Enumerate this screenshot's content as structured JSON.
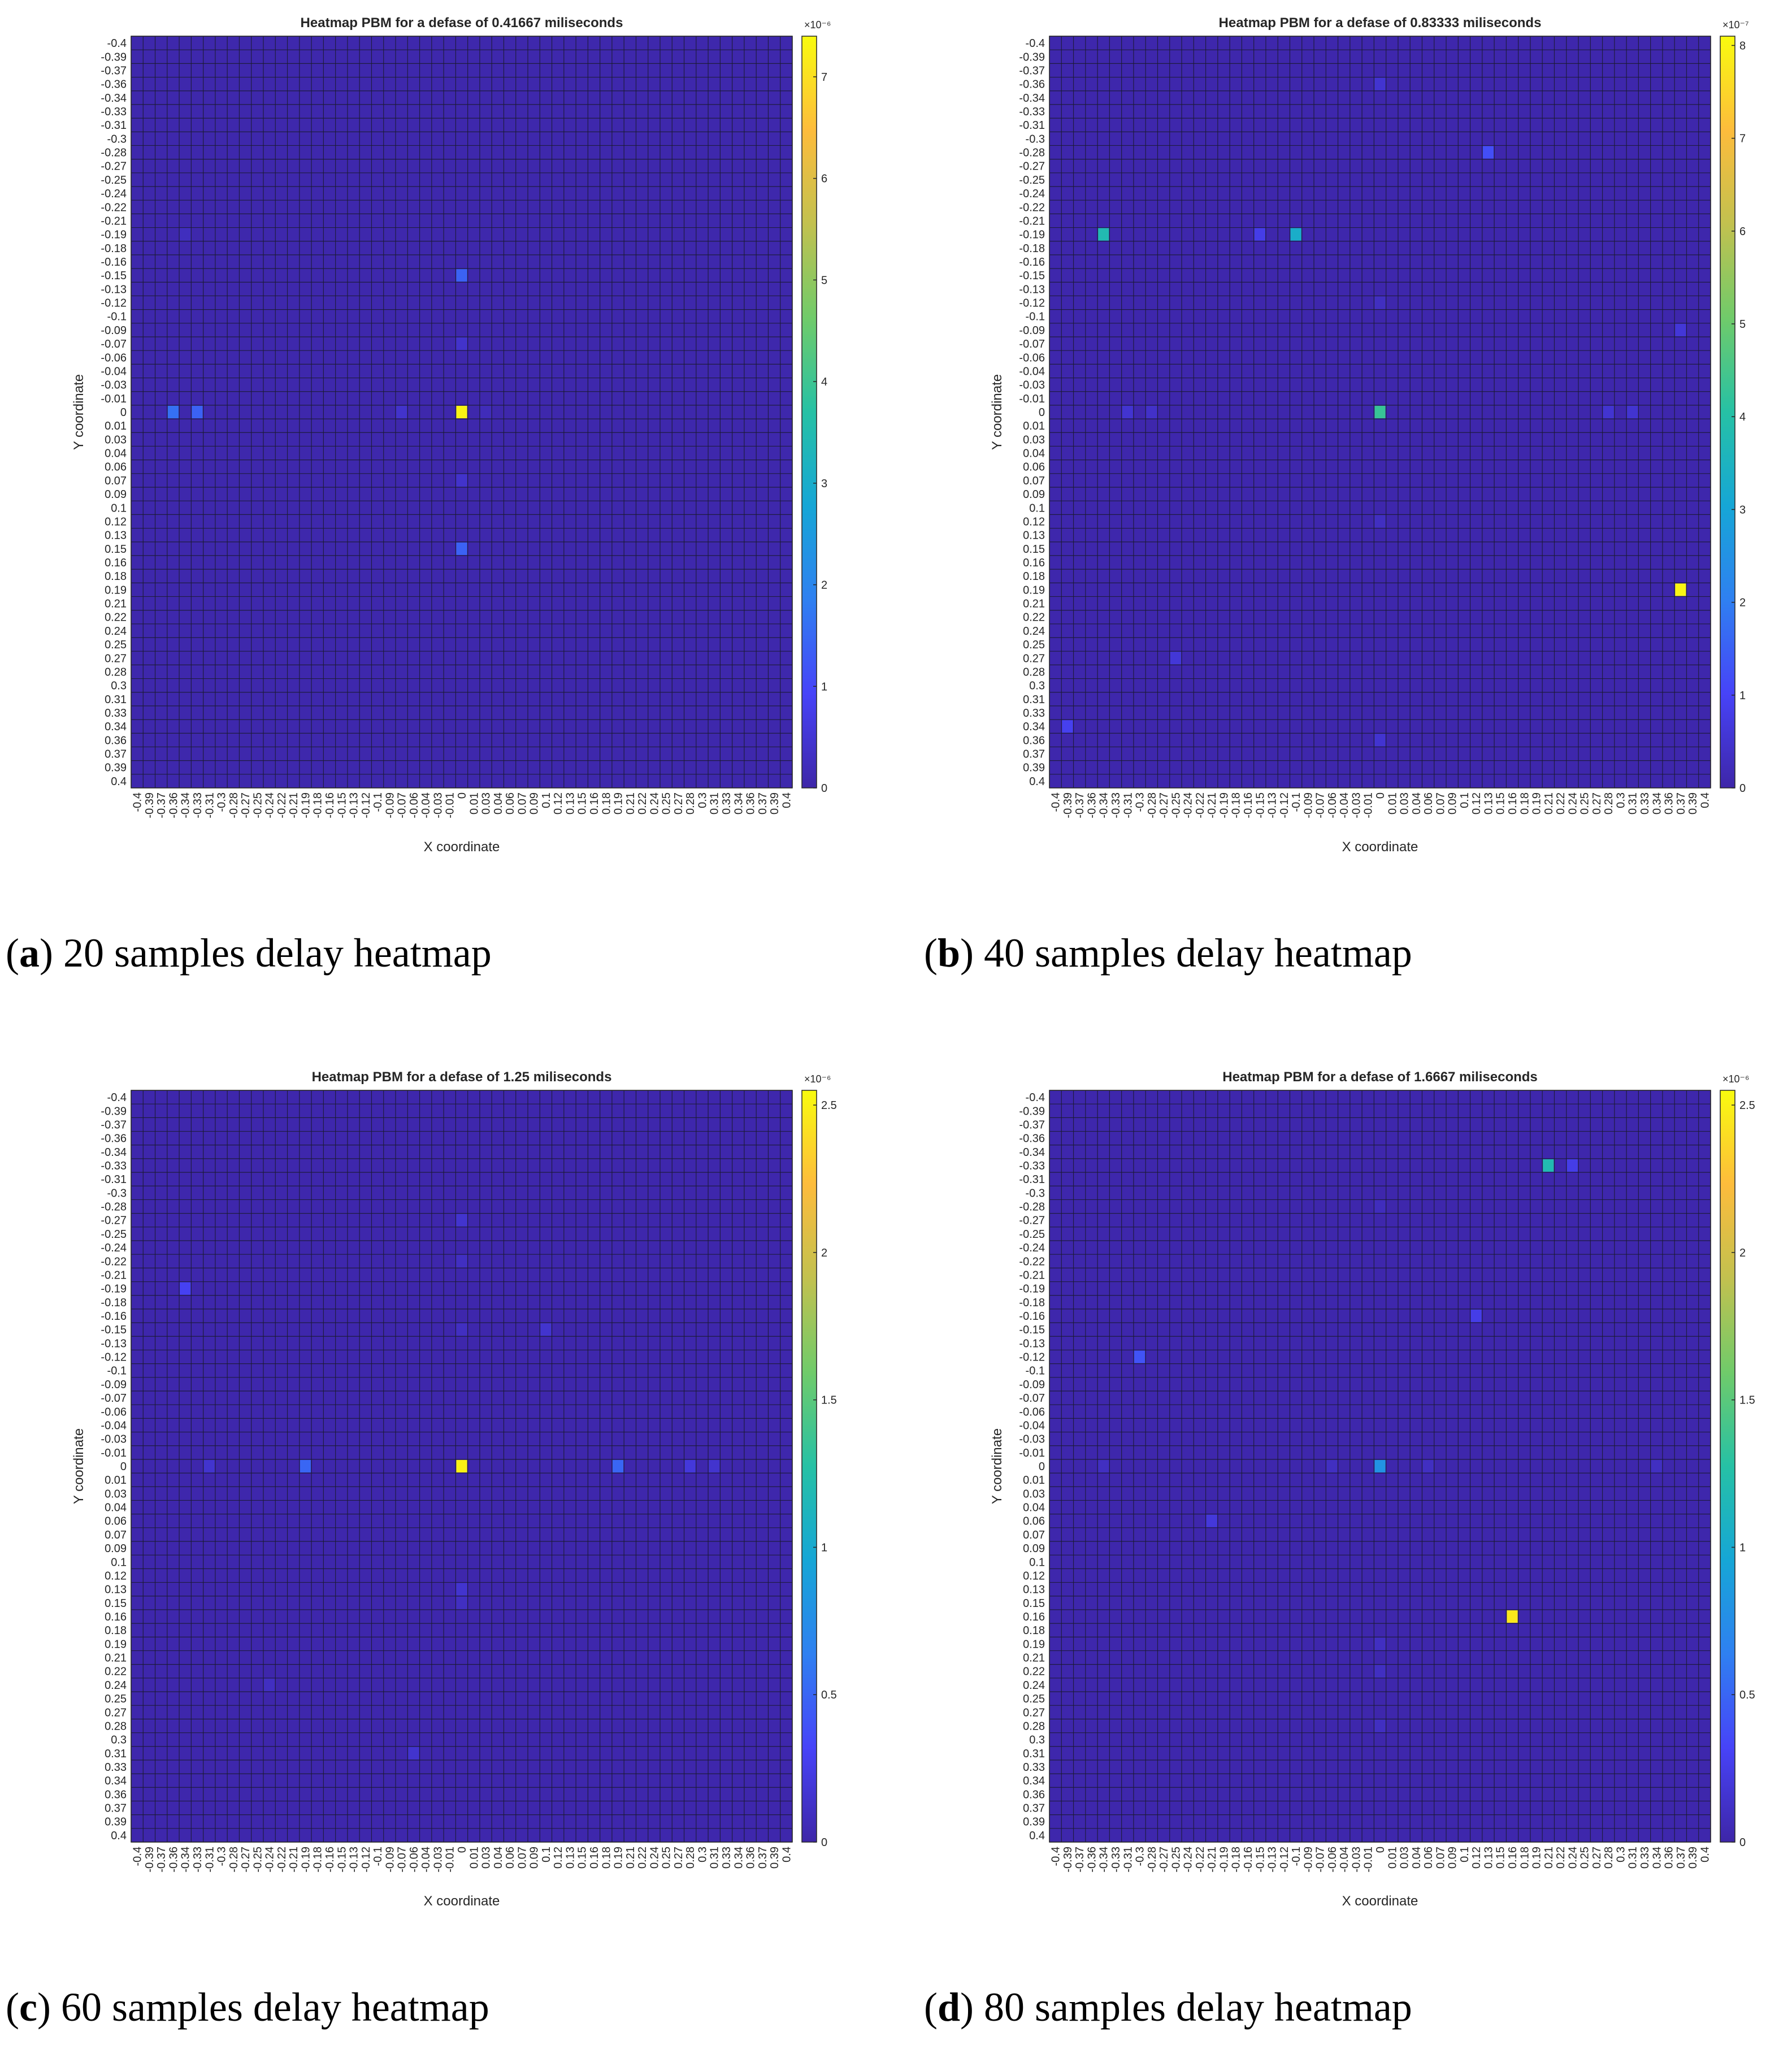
{
  "figure": {
    "captions": [
      {
        "letter": "a",
        "text": " 20 samples delay heatmap"
      },
      {
        "letter": "b",
        "text": " 40 samples delay heatmap"
      },
      {
        "letter": "c",
        "text": " 60 samples delay heatmap"
      },
      {
        "letter": "d",
        "text": " 80 samples delay heatmap"
      }
    ]
  },
  "ticks": [
    "-0.4",
    "-0.39",
    "-0.37",
    "-0.36",
    "-0.34",
    "-0.33",
    "-0.31",
    "-0.3",
    "-0.28",
    "-0.27",
    "-0.25",
    "-0.24",
    "-0.22",
    "-0.21",
    "-0.19",
    "-0.18",
    "-0.16",
    "-0.15",
    "-0.13",
    "-0.12",
    "-0.1",
    "-0.09",
    "-0.07",
    "-0.06",
    "-0.04",
    "-0.03",
    "-0.01",
    "0",
    "0.01",
    "0.03",
    "0.04",
    "0.06",
    "0.07",
    "0.09",
    "0.1",
    "0.12",
    "0.13",
    "0.15",
    "0.16",
    "0.18",
    "0.19",
    "0.21",
    "0.22",
    "0.24",
    "0.25",
    "0.27",
    "0.28",
    "0.3",
    "0.31",
    "0.33",
    "0.34",
    "0.36",
    "0.37",
    "0.39",
    "0.4"
  ],
  "colors": {
    "colormap": [
      "#3e26a8",
      "#4743f8",
      "#2f80f1",
      "#16a6d6",
      "#26c1a5",
      "#70cb6a",
      "#c2c14f",
      "#fdbc3c",
      "#f9fb0e"
    ],
    "grid": "#1a1a2e"
  },
  "chart_data": [
    {
      "type": "heatmap",
      "title": "Heatmap PBM for a defase of 0.41667 miliseconds",
      "xlabel": "X coordinate",
      "ylabel": "Y coordinate",
      "colorbar": {
        "exponent_label": "×10⁻⁶",
        "min": 0,
        "max": 7.4,
        "ticks": [
          0,
          1,
          2,
          3,
          4,
          5,
          6,
          7
        ]
      },
      "background": 0.05,
      "cells": [
        {
          "x": 0,
          "y": 0,
          "value": 7.3
        },
        {
          "x": -0.36,
          "y": 0,
          "value": 1.6
        },
        {
          "x": -0.33,
          "y": 0,
          "value": 1.4
        },
        {
          "x": -0.07,
          "y": 0,
          "value": 0.4
        },
        {
          "x": 0.03,
          "y": 0,
          "value": 0.2
        },
        {
          "x": 0,
          "y": -0.15,
          "value": 1.4
        },
        {
          "x": 0,
          "y": 0.15,
          "value": 1.4
        },
        {
          "x": 0,
          "y": -0.07,
          "value": 0.4
        },
        {
          "x": 0,
          "y": 0.07,
          "value": 0.4
        },
        {
          "x": -0.34,
          "y": -0.19,
          "value": 0.25
        }
      ]
    },
    {
      "type": "heatmap",
      "title": "Heatmap PBM for a defase of 0.83333 miliseconds",
      "xlabel": "X coordinate",
      "ylabel": "Y coordinate",
      "colorbar": {
        "exponent_label": "×10⁻⁷",
        "min": 0,
        "max": 8.1,
        "ticks": [
          0,
          1,
          2,
          3,
          4,
          5,
          6,
          7,
          8
        ]
      },
      "background": 0.05,
      "cells": [
        {
          "x": 0.37,
          "y": 0.19,
          "value": 8.0
        },
        {
          "x": -0.34,
          "y": -0.19,
          "value": 3.8
        },
        {
          "x": -0.1,
          "y": -0.19,
          "value": 3.3
        },
        {
          "x": -0.15,
          "y": -0.19,
          "value": 0.8
        },
        {
          "x": 0,
          "y": 0,
          "value": 4.3
        },
        {
          "x": 0.13,
          "y": -0.28,
          "value": 1.2
        },
        {
          "x": 0,
          "y": -0.36,
          "value": 0.5
        },
        {
          "x": 0,
          "y": -0.12,
          "value": 0.3
        },
        {
          "x": 0,
          "y": 0.12,
          "value": 0.3
        },
        {
          "x": 0.37,
          "y": -0.09,
          "value": 0.6
        },
        {
          "x": -0.31,
          "y": 0,
          "value": 0.5
        },
        {
          "x": -0.28,
          "y": 0,
          "value": 0.4
        },
        {
          "x": 0.28,
          "y": 0,
          "value": 0.5
        },
        {
          "x": 0.31,
          "y": 0,
          "value": 0.5
        },
        {
          "x": -0.25,
          "y": 0.27,
          "value": 0.6
        },
        {
          "x": -0.39,
          "y": 0.34,
          "value": 0.9
        },
        {
          "x": 0,
          "y": 0.36,
          "value": 0.5
        }
      ]
    },
    {
      "type": "heatmap",
      "title": "Heatmap PBM for a defase of 1.25 miliseconds",
      "xlabel": "X coordinate",
      "ylabel": "Y coordinate",
      "colorbar": {
        "exponent_label": "×10⁻⁶",
        "min": 0,
        "max": 2.55,
        "ticks": [
          0,
          0.5,
          1,
          1.5,
          2,
          2.5
        ]
      },
      "background": 0.015,
      "cells": [
        {
          "x": 0,
          "y": 0,
          "value": 2.5
        },
        {
          "x": -0.19,
          "y": 0,
          "value": 0.5
        },
        {
          "x": 0.19,
          "y": 0,
          "value": 0.5
        },
        {
          "x": -0.31,
          "y": 0,
          "value": 0.15
        },
        {
          "x": 0.28,
          "y": 0,
          "value": 0.2
        },
        {
          "x": 0.31,
          "y": 0,
          "value": 0.15
        },
        {
          "x": -0.34,
          "y": -0.19,
          "value": 0.3
        },
        {
          "x": 0,
          "y": -0.27,
          "value": 0.15
        },
        {
          "x": 0,
          "y": -0.22,
          "value": 0.1
        },
        {
          "x": 0,
          "y": -0.15,
          "value": 0.1
        },
        {
          "x": 0.1,
          "y": -0.15,
          "value": 0.15
        },
        {
          "x": 0,
          "y": 0.13,
          "value": 0.15
        },
        {
          "x": 0,
          "y": 0.15,
          "value": 0.1
        },
        {
          "x": -0.24,
          "y": 0.24,
          "value": 0.1
        },
        {
          "x": -0.06,
          "y": 0.31,
          "value": 0.15
        }
      ]
    },
    {
      "type": "heatmap",
      "title": "Heatmap PBM for a defase of 1.6667 miliseconds",
      "xlabel": "X coordinate",
      "ylabel": "Y coordinate",
      "colorbar": {
        "exponent_label": "×10⁻⁶",
        "min": 0,
        "max": 2.55,
        "ticks": [
          0,
          0.5,
          1,
          1.5,
          2,
          2.5
        ]
      },
      "background": 0.015,
      "cells": [
        {
          "x": 0.16,
          "y": 0.16,
          "value": 2.45
        },
        {
          "x": 0.21,
          "y": -0.33,
          "value": 1.2
        },
        {
          "x": 0.24,
          "y": -0.33,
          "value": 0.25
        },
        {
          "x": 0,
          "y": 0,
          "value": 0.8
        },
        {
          "x": -0.3,
          "y": -0.12,
          "value": 0.4
        },
        {
          "x": 0.12,
          "y": -0.16,
          "value": 0.25
        },
        {
          "x": -0.21,
          "y": 0.06,
          "value": 0.2
        },
        {
          "x": -0.34,
          "y": 0,
          "value": 0.1
        },
        {
          "x": 0.06,
          "y": 0,
          "value": 0.1
        },
        {
          "x": -0.06,
          "y": 0,
          "value": 0.1
        },
        {
          "x": 0.34,
          "y": 0,
          "value": 0.1
        },
        {
          "x": 0,
          "y": 0.19,
          "value": 0.1
        },
        {
          "x": 0,
          "y": 0.22,
          "value": 0.1
        },
        {
          "x": 0,
          "y": 0.28,
          "value": 0.1
        },
        {
          "x": 0,
          "y": -0.28,
          "value": 0.08
        }
      ]
    }
  ]
}
